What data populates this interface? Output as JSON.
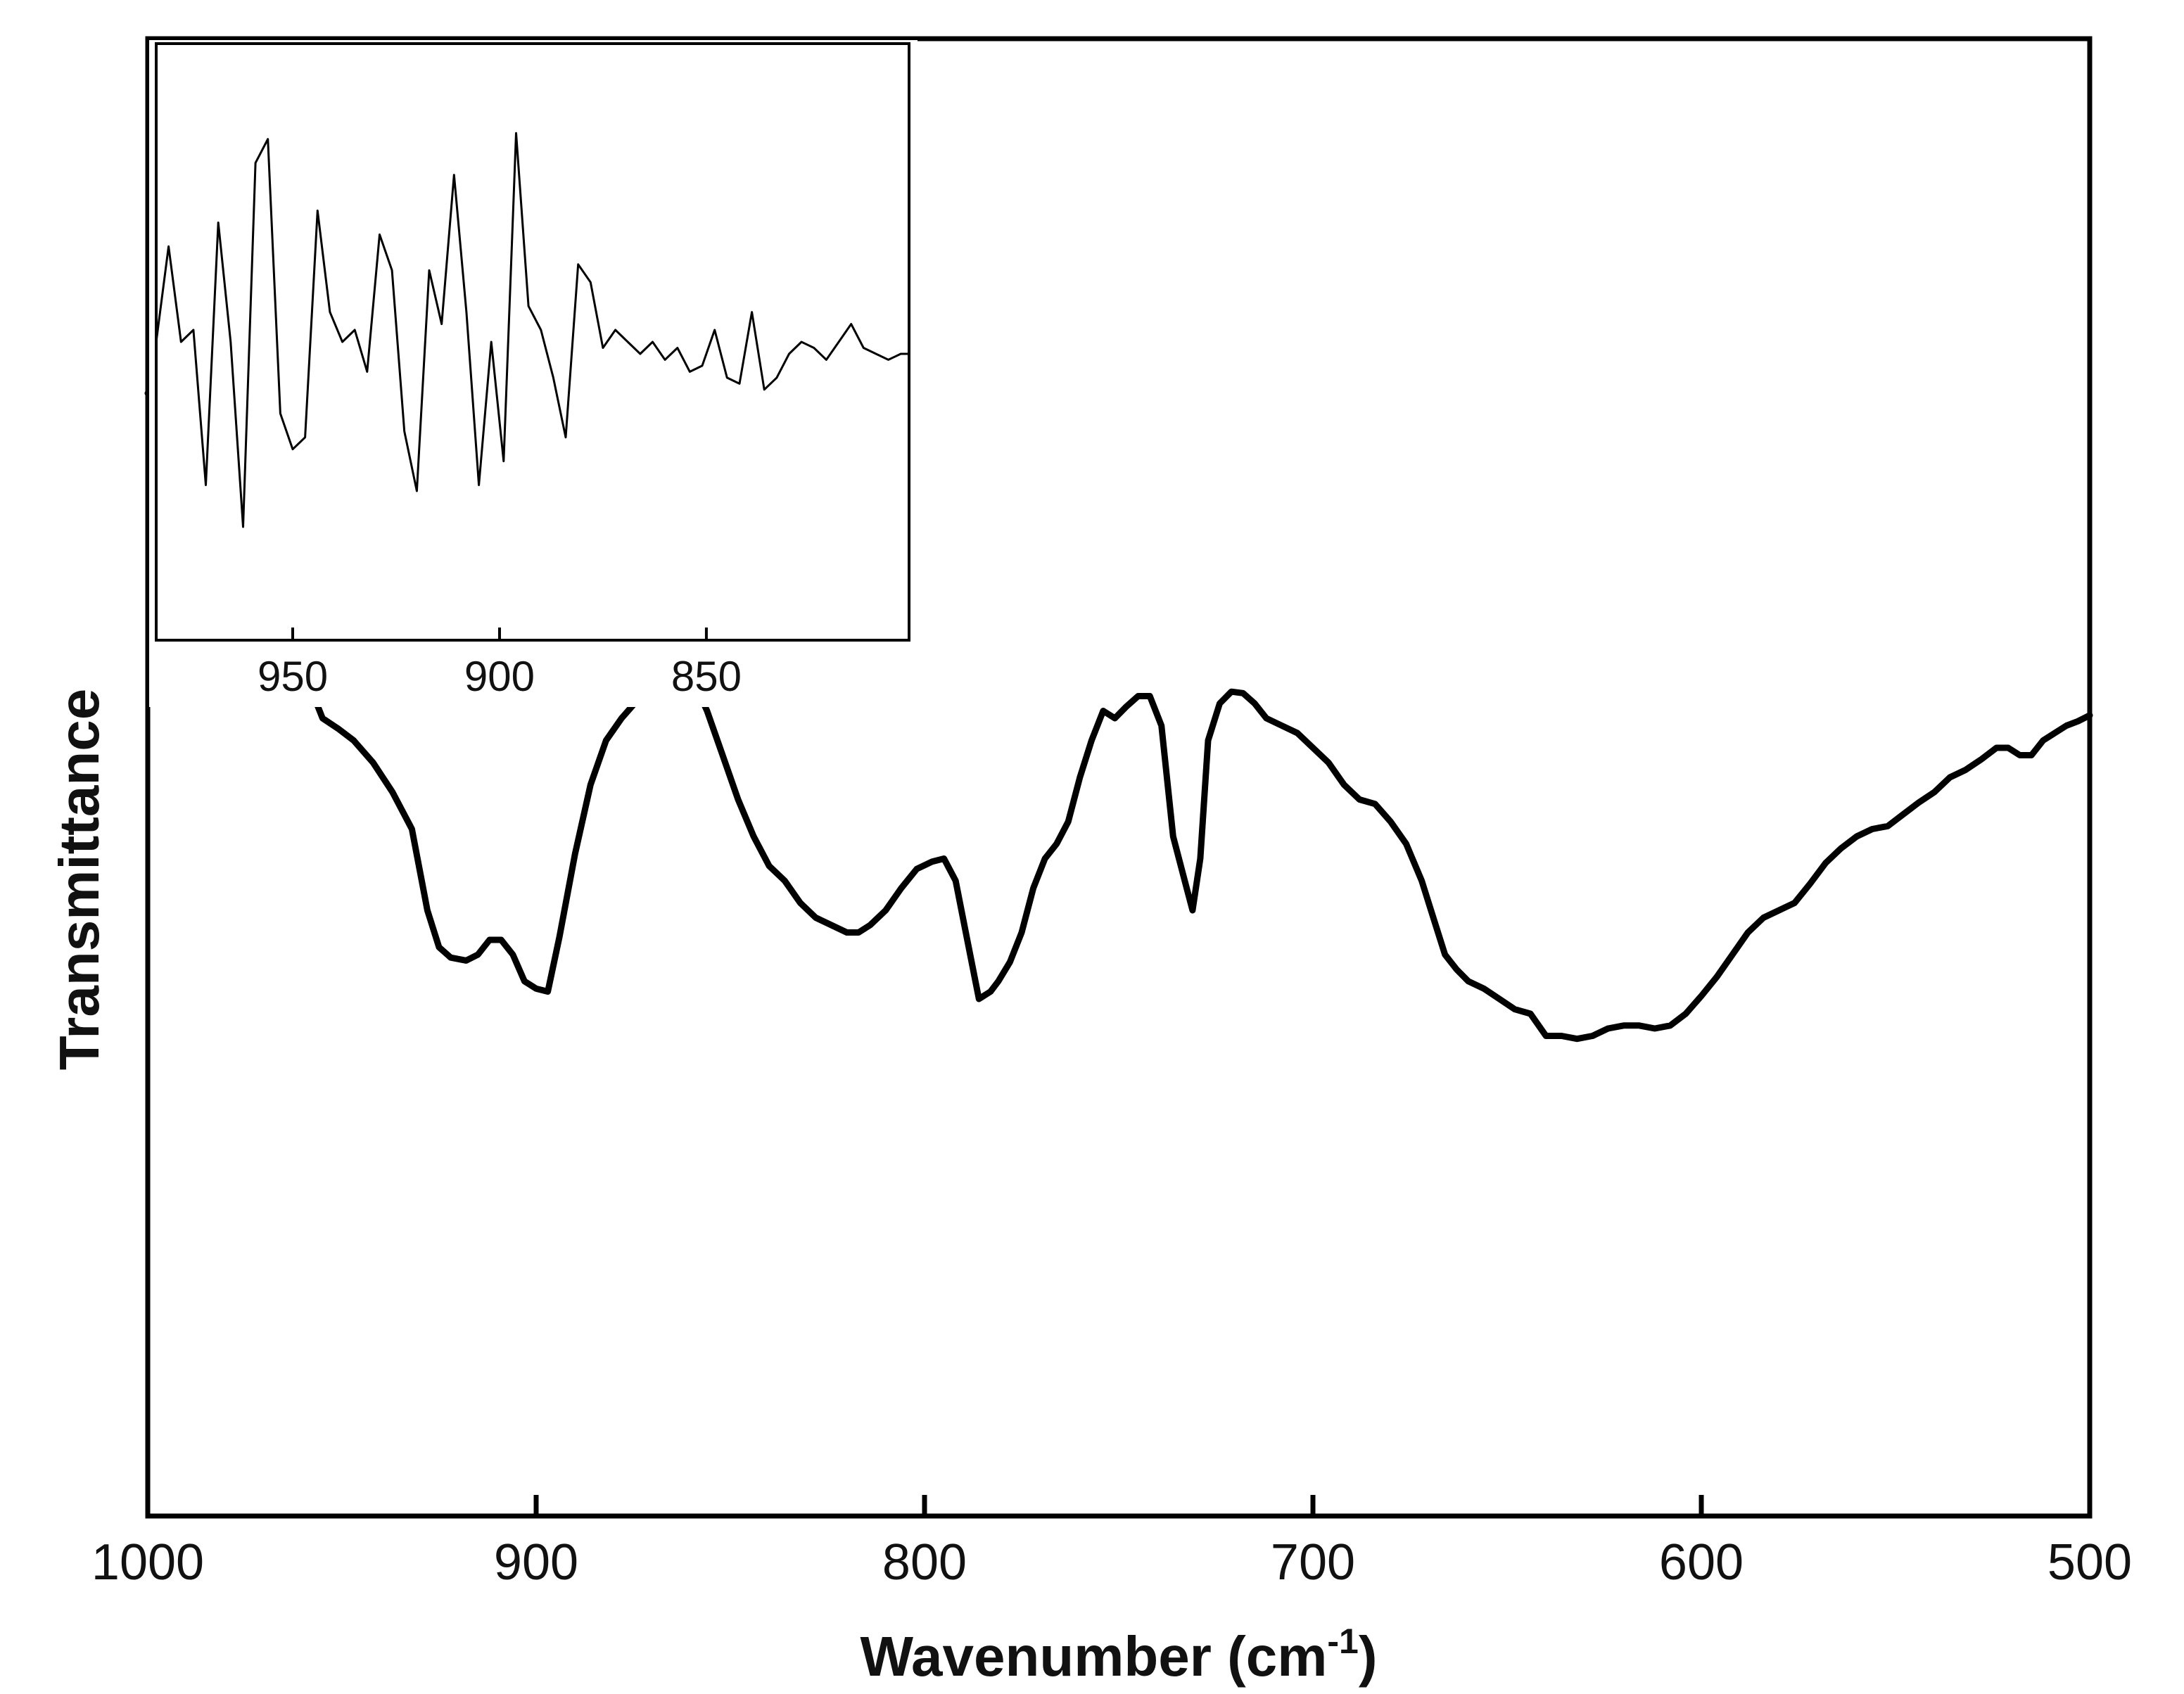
{
  "chart_data": [
    {
      "type": "line",
      "name": "main",
      "xlabel": "Wavenumber (cm-1)",
      "xlabel_main": "Wavenumber (cm",
      "xlabel_sup": "-1",
      "xlabel_close": ")",
      "ylabel": "Transmittance",
      "x_reversed": true,
      "xlim": [
        1000,
        500
      ],
      "ylim": [
        0,
        1
      ],
      "y_ticks_shown": false,
      "grid": false,
      "x_ticks": [
        {
          "value": 1000,
          "label": "1000"
        },
        {
          "value": 900,
          "label": "900"
        },
        {
          "value": 800,
          "label": "800"
        },
        {
          "value": 700,
          "label": "700"
        },
        {
          "value": 600,
          "label": "600"
        },
        {
          "value": 500,
          "label": "500"
        }
      ],
      "series": [
        {
          "color": "#000000",
          "x": [
            1000,
            997,
            993,
            990,
            985,
            980,
            975,
            970,
            966,
            962,
            958,
            955,
            951,
            947,
            942,
            937,
            932,
            928,
            925,
            922,
            918,
            915,
            912,
            909,
            906,
            903,
            900,
            897,
            894,
            890,
            886,
            882,
            878,
            874,
            870,
            866,
            863,
            860,
            856,
            852,
            848,
            844,
            840,
            836,
            832,
            828,
            824,
            820,
            817,
            814,
            810,
            806,
            802,
            798,
            795,
            792,
            789,
            786,
            783,
            781,
            778,
            775,
            772,
            769,
            766,
            763,
            760,
            757,
            754,
            751,
            748,
            745,
            742,
            739,
            736,
            733,
            731,
            729,
            727,
            724,
            721,
            718,
            715,
            712,
            708,
            704,
            700,
            696,
            692,
            688,
            684,
            680,
            676,
            672,
            669,
            666,
            663,
            660,
            656,
            652,
            648,
            644,
            640,
            636,
            632,
            628,
            624,
            620,
            616,
            612,
            608,
            604,
            600,
            596,
            592,
            588,
            584,
            580,
            576,
            572,
            568,
            564,
            560,
            556,
            552,
            548,
            544,
            540,
            536,
            532,
            528,
            524,
            521,
            518,
            515,
            512,
            509,
            506,
            503,
            500
          ],
          "y": [
            0.76,
            0.762,
            0.758,
            0.742,
            0.715,
            0.69,
            0.66,
            0.63,
            0.615,
            0.595,
            0.56,
            0.54,
            0.533,
            0.525,
            0.51,
            0.49,
            0.465,
            0.41,
            0.385,
            0.378,
            0.376,
            0.38,
            0.39,
            0.39,
            0.38,
            0.362,
            0.357,
            0.355,
            0.392,
            0.448,
            0.495,
            0.525,
            0.54,
            0.552,
            0.575,
            0.588,
            0.585,
            0.568,
            0.545,
            0.515,
            0.485,
            0.46,
            0.44,
            0.43,
            0.415,
            0.405,
            0.4,
            0.395,
            0.395,
            0.4,
            0.41,
            0.425,
            0.438,
            0.443,
            0.445,
            0.43,
            0.39,
            0.35,
            0.355,
            0.362,
            0.375,
            0.395,
            0.425,
            0.445,
            0.455,
            0.47,
            0.5,
            0.525,
            0.545,
            0.54,
            0.548,
            0.555,
            0.555,
            0.535,
            0.46,
            0.43,
            0.41,
            0.445,
            0.525,
            0.55,
            0.558,
            0.557,
            0.55,
            0.54,
            0.535,
            0.53,
            0.52,
            0.51,
            0.495,
            0.485,
            0.482,
            0.47,
            0.455,
            0.43,
            0.405,
            0.38,
            0.37,
            0.362,
            0.357,
            0.35,
            0.343,
            0.34,
            0.325,
            0.325,
            0.323,
            0.325,
            0.33,
            0.332,
            0.332,
            0.33,
            0.332,
            0.34,
            0.352,
            0.365,
            0.38,
            0.395,
            0.405,
            0.41,
            0.415,
            0.428,
            0.442,
            0.452,
            0.46,
            0.465,
            0.467,
            0.475,
            0.483,
            0.49,
            0.5,
            0.505,
            0.512,
            0.52,
            0.52,
            0.515,
            0.515,
            0.525,
            0.53,
            0.535,
            0.538,
            0.542
          ]
        }
      ]
    },
    {
      "type": "line",
      "name": "inset",
      "x_reversed": true,
      "xlim": [
        983,
        801
      ],
      "ylim": [
        0,
        1
      ],
      "y_ticks_shown": false,
      "grid": false,
      "x_ticks": [
        {
          "value": 950,
          "label": "950"
        },
        {
          "value": 900,
          "label": "900"
        },
        {
          "value": 850,
          "label": "850"
        }
      ],
      "series": [
        {
          "color": "#000000",
          "x": [
            983,
            980,
            977,
            974,
            971,
            968,
            965,
            962,
            959,
            956,
            953,
            950,
            947,
            944,
            941,
            938,
            935,
            932,
            929,
            926,
            923,
            920,
            917,
            914,
            911,
            908,
            905,
            902,
            899,
            896,
            893,
            890,
            887,
            884,
            881,
            878,
            875,
            872,
            869,
            866,
            863,
            860,
            857,
            854,
            851,
            848,
            845,
            842,
            839,
            836,
            833,
            830,
            827,
            824,
            821,
            818,
            815,
            812,
            809,
            806,
            803,
            801
          ],
          "y": [
            0.5,
            0.66,
            0.5,
            0.52,
            0.26,
            0.7,
            0.5,
            0.19,
            0.8,
            0.84,
            0.38,
            0.32,
            0.34,
            0.72,
            0.55,
            0.5,
            0.52,
            0.45,
            0.68,
            0.62,
            0.35,
            0.25,
            0.62,
            0.53,
            0.78,
            0.55,
            0.26,
            0.5,
            0.3,
            0.85,
            0.56,
            0.52,
            0.44,
            0.34,
            0.63,
            0.6,
            0.49,
            0.52,
            0.5,
            0.48,
            0.5,
            0.47,
            0.49,
            0.45,
            0.46,
            0.52,
            0.44,
            0.43,
            0.55,
            0.42,
            0.44,
            0.48,
            0.5,
            0.49,
            0.47,
            0.5,
            0.53,
            0.49,
            0.48,
            0.47,
            0.48,
            0.48
          ]
        }
      ]
    }
  ]
}
